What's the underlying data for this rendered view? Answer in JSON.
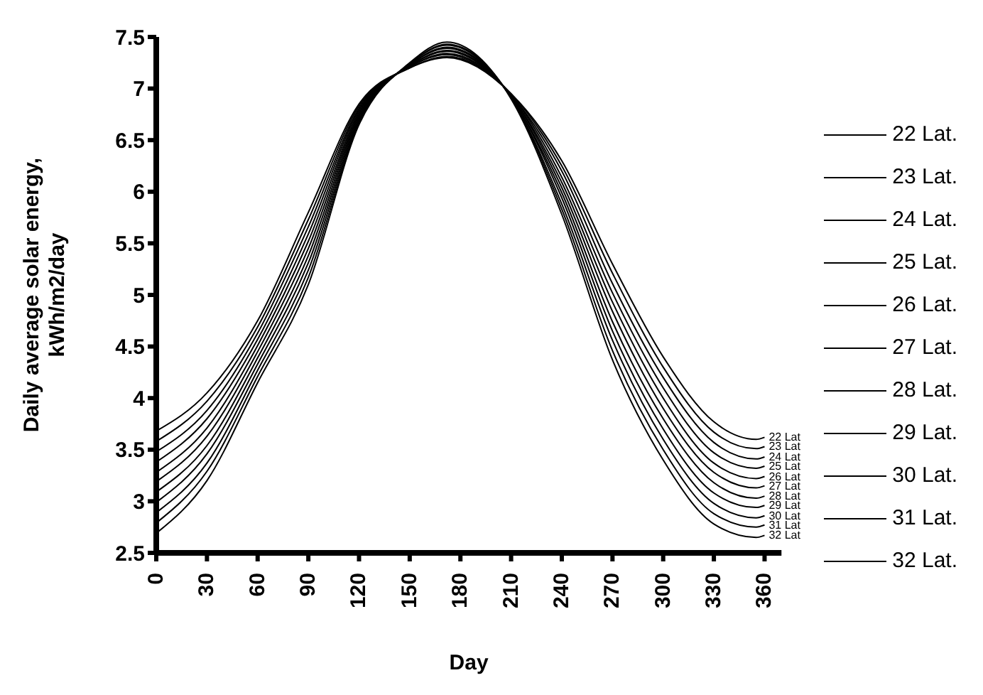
{
  "chart_data": {
    "type": "line",
    "xlabel": "Day",
    "ylabel": "Daily average solar energy, kWh/m2/day",
    "x": [
      0,
      30,
      60,
      90,
      120,
      150,
      172,
      210,
      240,
      270,
      300,
      330,
      355,
      360
    ],
    "xlim": [
      0,
      370
    ],
    "xticks": [
      0,
      30,
      60,
      90,
      120,
      150,
      180,
      210,
      240,
      270,
      300,
      330,
      360
    ],
    "ylim": [
      2.5,
      7.5
    ],
    "yticks": [
      2.5,
      3,
      3.5,
      4,
      4.5,
      5,
      5.5,
      6,
      6.5,
      7,
      7.5
    ],
    "grid": false,
    "legend": "right",
    "marker": "none",
    "line_style": "solid",
    "series": [
      {
        "name": "22 Lat.",
        "color": "#000000",
        "values": [
          3.68,
          4.05,
          4.75,
          5.8,
          6.85,
          7.2,
          7.3,
          6.95,
          6.3,
          5.3,
          4.4,
          3.77,
          3.6,
          3.62
        ]
      },
      {
        "name": "23 Lat.",
        "color": "#000000",
        "values": [
          3.58,
          3.97,
          4.69,
          5.73,
          6.83,
          7.2,
          7.31,
          6.95,
          6.25,
          5.21,
          4.3,
          3.67,
          3.51,
          3.53
        ]
      },
      {
        "name": "24 Lat.",
        "color": "#000000",
        "values": [
          3.48,
          3.88,
          4.63,
          5.66,
          6.81,
          7.21,
          7.33,
          6.94,
          6.2,
          5.11,
          4.2,
          3.57,
          3.41,
          3.43
        ]
      },
      {
        "name": "25 Lat.",
        "color": "#000000",
        "values": [
          3.38,
          3.8,
          4.57,
          5.59,
          6.79,
          7.21,
          7.34,
          6.94,
          6.14,
          5.02,
          4.1,
          3.47,
          3.32,
          3.34
        ]
      },
      {
        "name": "26 Lat.",
        "color": "#000000",
        "values": [
          3.28,
          3.71,
          4.51,
          5.52,
          6.77,
          7.22,
          7.36,
          6.93,
          6.09,
          4.93,
          4.0,
          3.37,
          3.22,
          3.24
        ]
      },
      {
        "name": "27 Lat.",
        "color": "#000000",
        "values": [
          3.19,
          3.63,
          4.45,
          5.45,
          6.75,
          7.22,
          7.37,
          6.93,
          6.04,
          4.84,
          3.9,
          3.28,
          3.13,
          3.15
        ]
      },
      {
        "name": "28 Lat.",
        "color": "#000000",
        "values": [
          3.09,
          3.54,
          4.39,
          5.38,
          6.73,
          7.23,
          7.39,
          6.92,
          5.99,
          4.74,
          3.8,
          3.18,
          3.03,
          3.05
        ]
      },
      {
        "name": "29 Lat.",
        "color": "#000000",
        "values": [
          2.99,
          3.46,
          4.33,
          5.31,
          6.71,
          7.23,
          7.4,
          6.92,
          5.94,
          4.65,
          3.7,
          3.08,
          2.94,
          2.96
        ]
      },
      {
        "name": "30 Lat.",
        "color": "#000000",
        "values": [
          2.89,
          3.37,
          4.27,
          5.24,
          6.69,
          7.24,
          7.42,
          6.91,
          5.88,
          4.56,
          3.6,
          2.98,
          2.84,
          2.86
        ]
      },
      {
        "name": "31 Lat.",
        "color": "#000000",
        "values": [
          2.79,
          3.29,
          4.21,
          5.17,
          6.67,
          7.24,
          7.43,
          6.91,
          5.83,
          4.46,
          3.5,
          2.88,
          2.75,
          2.77
        ]
      },
      {
        "name": "32 Lat.",
        "color": "#000000",
        "values": [
          2.69,
          3.2,
          4.15,
          5.1,
          6.65,
          7.25,
          7.45,
          6.9,
          5.78,
          4.37,
          3.4,
          2.78,
          2.65,
          2.67
        ]
      }
    ],
    "annotations": [
      "22 Lat",
      "23 Lat",
      "24 Lat",
      "25 Lat",
      "26 Lat",
      "27 Lat",
      "28 Lat",
      "29 Lat",
      "30 Lat",
      "31 Lat",
      "32 Lat"
    ]
  }
}
